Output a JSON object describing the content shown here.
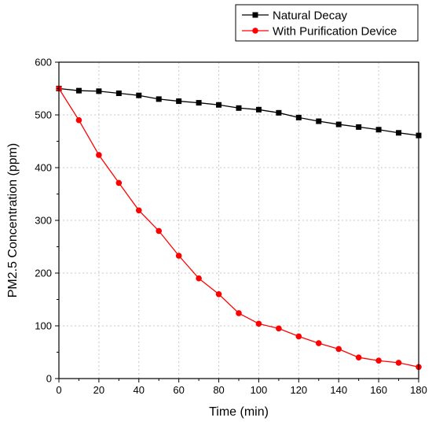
{
  "chart_data": {
    "type": "line",
    "xlabel": "Time (min)",
    "ylabel": "PM2.5 Concentration (ppm)",
    "xlim": [
      0,
      180
    ],
    "ylim": [
      0,
      600
    ],
    "x_ticks": [
      0,
      20,
      40,
      60,
      80,
      100,
      120,
      140,
      160,
      180
    ],
    "y_ticks": [
      0,
      100,
      200,
      300,
      400,
      500,
      600
    ],
    "grid": true,
    "legend_position": "top-right",
    "x": [
      0,
      10,
      20,
      30,
      40,
      50,
      60,
      70,
      80,
      90,
      100,
      110,
      120,
      130,
      140,
      150,
      160,
      170,
      180
    ],
    "series": [
      {
        "name": "Natural Decay",
        "color": "#000000",
        "marker": "square",
        "values": [
          550,
          546,
          545,
          541,
          537,
          530,
          526,
          523,
          519,
          513,
          510,
          504,
          495,
          488,
          482,
          477,
          472,
          466,
          461
        ]
      },
      {
        "name": "With Purification Device",
        "color": "#ff0000",
        "marker": "circle",
        "values": [
          550,
          490,
          424,
          371,
          319,
          280,
          233,
          190,
          160,
          124,
          104,
          95,
          80,
          67,
          56,
          40,
          34,
          30,
          22
        ]
      }
    ]
  }
}
